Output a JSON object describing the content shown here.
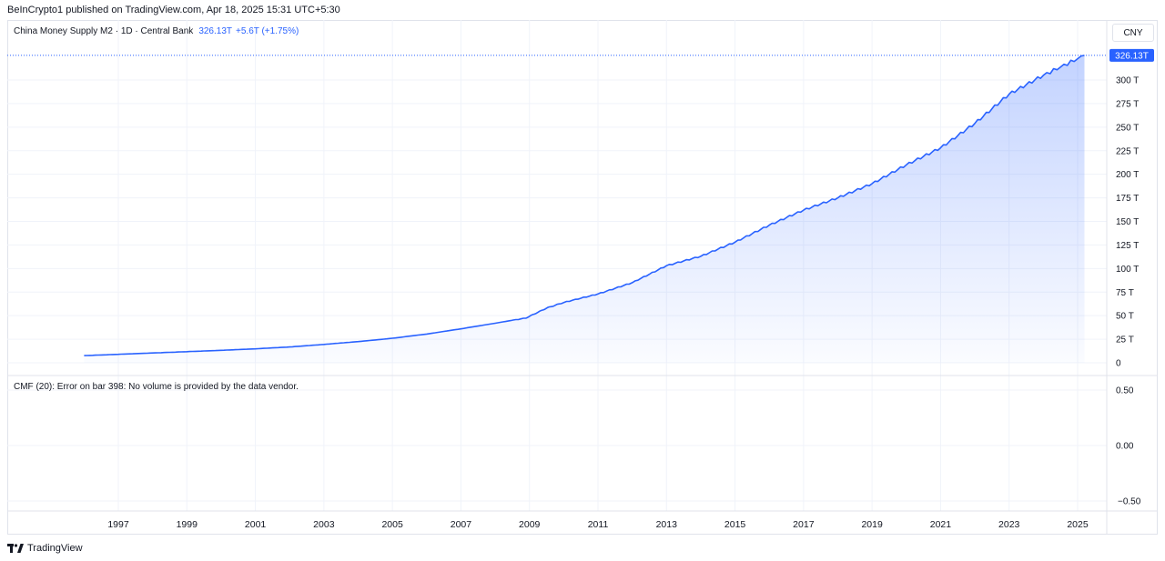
{
  "header": {
    "publisher_text": "BeInCrypto1 published on TradingView.com, Apr 18, 2025 15:31 UTC+5:30"
  },
  "legend": {
    "symbol_title": "China Money Supply M2 · 1D · Central Bank",
    "last_value": "326.13T",
    "change": "+5.6T (+1.75%)"
  },
  "currency_button": "CNY",
  "price_tag": "326.13T",
  "cmf": {
    "label": "CMF (20): Error on bar 398: No volume is provided by the data vendor.",
    "ticks": [
      "0.50",
      "0.00",
      "−0.50"
    ]
  },
  "footer": {
    "brand": "TradingView"
  },
  "colors": {
    "line": "#2962ff",
    "area_top": "#2962ff",
    "grid": "#f0f3fa",
    "border": "#e0e3eb"
  },
  "chart_data": {
    "type": "area",
    "title": "",
    "xlabel": "",
    "ylabel": "",
    "ylim": [
      0,
      325
    ],
    "y_ticks": [
      {
        "value": 0,
        "label": "0"
      },
      {
        "value": 25,
        "label": "25 T"
      },
      {
        "value": 50,
        "label": "50 T"
      },
      {
        "value": 75,
        "label": "75 T"
      },
      {
        "value": 100,
        "label": "100 T"
      },
      {
        "value": 125,
        "label": "125 T"
      },
      {
        "value": 150,
        "label": "150 T"
      },
      {
        "value": 175,
        "label": "175 T"
      },
      {
        "value": 200,
        "label": "200 T"
      },
      {
        "value": 225,
        "label": "225 T"
      },
      {
        "value": 250,
        "label": "250 T"
      },
      {
        "value": 275,
        "label": "275 T"
      },
      {
        "value": 300,
        "label": "300 T"
      }
    ],
    "x_ticks": [
      "1997",
      "1999",
      "2001",
      "2003",
      "2005",
      "2007",
      "2009",
      "2011",
      "2013",
      "2015",
      "2017",
      "2019",
      "2021",
      "2023",
      "2025"
    ],
    "series": [
      {
        "x": [
          1996.0,
          1997.0,
          1998.0,
          1999.0,
          2000.0,
          2001.0,
          2002.0,
          2003.0,
          2004.0,
          2005.0,
          2006.0,
          2007.0,
          2008.0,
          2008.9,
          2009.5,
          2010.0,
          2011.0,
          2012.0,
          2013.0,
          2014.0,
          2015.0,
          2016.0,
          2017.0,
          2018.0,
          2019.0,
          2020.0,
          2021.0,
          2022.0,
          2023.0,
          2024.0,
          2025.2
        ],
        "y": [
          7.6,
          9.0,
          10.4,
          11.8,
          13.2,
          14.8,
          16.8,
          19.5,
          22.5,
          26.0,
          30.5,
          36.0,
          42.0,
          47.5,
          58.0,
          64.0,
          73.0,
          85.0,
          103.0,
          113.0,
          128.0,
          146.0,
          162.0,
          175.0,
          190.0,
          210.0,
          228.0,
          254.0,
          285.0,
          305.0,
          326.13
        ]
      }
    ],
    "grid": true,
    "legend": "none"
  }
}
